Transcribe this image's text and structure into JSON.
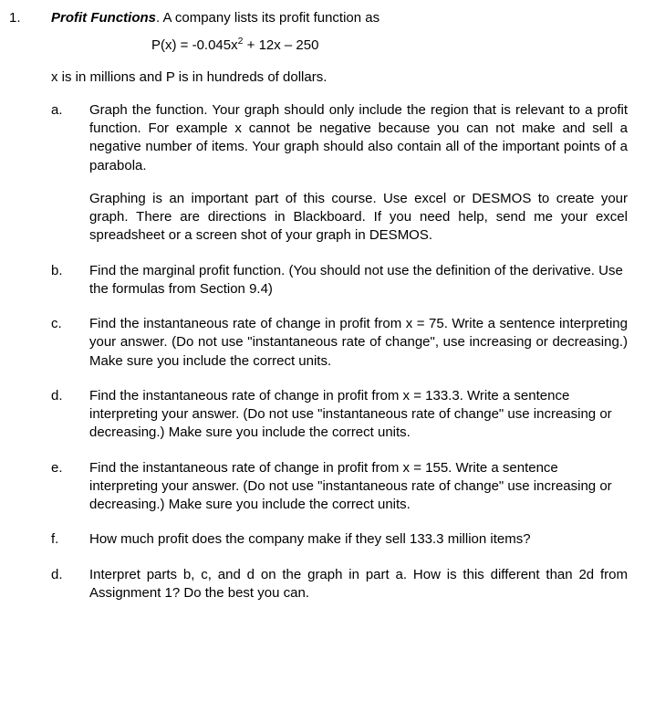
{
  "problem": {
    "number": "1.",
    "title": "Profit Functions",
    "title_suffix": ". A company lists its profit function as",
    "equation": "P(x) = -0.045x² + 12x – 250",
    "intro": "x is in millions and P is in hundreds of dollars.",
    "parts": [
      {
        "letter": "a.",
        "paragraphs": [
          "Graph the function. Your graph should only include the region that is relevant to a profit function. For example x cannot be negative because you can not make and sell a negative number of items. Your graph should also contain all of the important points of a parabola.",
          "Graphing is an important part of this course. Use excel or DESMOS to create your graph. There are directions in Blackboard. If you need help, send me your excel spreadsheet or a screen shot of your graph in DESMOS."
        ],
        "justify": true
      },
      {
        "letter": "b.",
        "paragraphs": [
          "Find the marginal profit function. (You should not use the definition of the derivative. Use the formulas from Section 9.4)"
        ],
        "justify": false
      },
      {
        "letter": "c.",
        "paragraphs": [
          "Find the instantaneous rate of change in profit from x = 75. Write a sentence interpreting your answer. (Do not use \"instantaneous rate of change\", use increasing or decreasing.) Make sure you include the correct units."
        ],
        "justify": true
      },
      {
        "letter": "d.",
        "paragraphs": [
          "Find the instantaneous rate of change in profit from x = 133.3. Write a sentence interpreting your answer. (Do not use \"instantaneous rate of change\" use increasing or decreasing.) Make sure you include the correct units."
        ],
        "justify": false
      },
      {
        "letter": "e.",
        "paragraphs": [
          "Find the instantaneous rate of change in profit from x = 155. Write a sentence interpreting your answer. (Do not use \"instantaneous rate of change\" use increasing or decreasing.) Make sure you include the correct units."
        ],
        "justify": false
      },
      {
        "letter": "f.",
        "paragraphs": [
          "How much profit does the company make if they sell 133.3 million items?"
        ],
        "justify": false
      },
      {
        "letter": "d.",
        "paragraphs": [
          "Interpret parts b, c, and d on the graph in part a. How is this different than 2d from Assignment 1? Do the best you can."
        ],
        "justify": true
      }
    ]
  }
}
